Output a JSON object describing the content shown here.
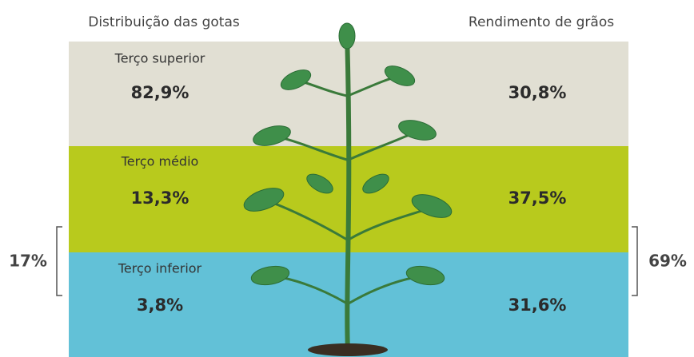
{
  "headers": {
    "left": "Distribuição das gotas",
    "right": "Rendimento de grãos"
  },
  "rows": [
    {
      "label": "Terço superior",
      "left_value": "82,9%",
      "right_value": "30,8%"
    },
    {
      "label": "Terço médio",
      "left_value": "13,3%",
      "right_value": "37,5%"
    },
    {
      "label": "Terço inferior",
      "left_value": "3,8%",
      "right_value": "31,6%"
    }
  ],
  "brackets": {
    "left": "17%",
    "right": "69%"
  }
}
